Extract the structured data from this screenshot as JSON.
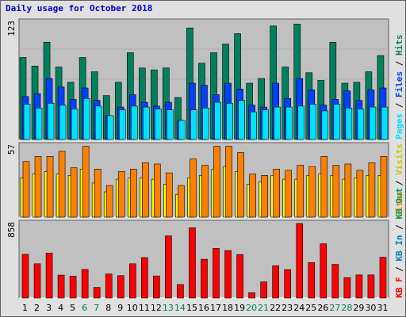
{
  "title": "Daily usage for October 2018",
  "colors": {
    "hits": "#00805c",
    "files": "#0040ff",
    "pages": "#00e0ff",
    "visits": "#ffff00",
    "sites": "#ff8000",
    "kb_f": "#ff0000",
    "kb_in": "#0080c0",
    "kb_out": "#00a050",
    "weekend_day": "#00805c",
    "weekday": "#000000"
  },
  "chart_data": [
    {
      "type": "bar",
      "panel": "hits-files-pages",
      "y_top_label": "123",
      "ylim": [
        0,
        123
      ],
      "right_labels": [
        {
          "text": "Pages",
          "color": "#00e0ff"
        },
        {
          "text": " / ",
          "color": "#000000"
        },
        {
          "text": "Files",
          "color": "#0040ff"
        },
        {
          "text": " / ",
          "color": "#000000"
        },
        {
          "text": "Hits",
          "color": "#00805c"
        }
      ],
      "categories": [
        "1",
        "2",
        "3",
        "4",
        "5",
        "6",
        "7",
        "8",
        "9",
        "10",
        "11",
        "12",
        "13",
        "14",
        "15",
        "16",
        "17",
        "18",
        "19",
        "20",
        "21",
        "22",
        "23",
        "24",
        "25",
        "26",
        "27",
        "28",
        "29",
        "30",
        "31"
      ],
      "series": [
        {
          "key": "hits",
          "values": [
            86,
            77,
            102,
            76,
            60,
            86,
            71,
            46,
            60,
            91,
            75,
            73,
            75,
            44,
            117,
            80,
            91,
            100,
            111,
            59,
            64,
            119,
            76,
            121,
            70,
            62,
            102,
            59,
            60,
            71,
            88
          ]
        },
        {
          "key": "files",
          "values": [
            45,
            48,
            64,
            55,
            42,
            54,
            41,
            25,
            34,
            47,
            39,
            35,
            39,
            20,
            59,
            57,
            47,
            59,
            53,
            36,
            34,
            59,
            43,
            64,
            52,
            36,
            42,
            51,
            41,
            52,
            54
          ]
        },
        {
          "key": "pages",
          "values": [
            37,
            33,
            38,
            36,
            32,
            43,
            35,
            25,
            31,
            35,
            34,
            32,
            31,
            20,
            31,
            33,
            39,
            38,
            41,
            29,
            31,
            34,
            34,
            35,
            37,
            30,
            37,
            33,
            32,
            34,
            34
          ]
        }
      ]
    },
    {
      "type": "bar",
      "panel": "visits-sites",
      "y_top_label": "57",
      "ylim": [
        0,
        57
      ],
      "right_labels": [
        {
          "text": "Sites",
          "color": "#ff8000"
        },
        {
          "text": " / ",
          "color": "#000000"
        },
        {
          "text": "Visits",
          "color": "#c8c800"
        }
      ],
      "categories": [
        "1",
        "2",
        "3",
        "4",
        "5",
        "6",
        "7",
        "8",
        "9",
        "10",
        "11",
        "12",
        "13",
        "14",
        "15",
        "16",
        "17",
        "18",
        "19",
        "20",
        "21",
        "22",
        "23",
        "24",
        "25",
        "26",
        "27",
        "28",
        "29",
        "30",
        "31"
      ],
      "series": [
        {
          "key": "visits",
          "values": [
            31,
            34,
            36,
            34,
            33,
            38,
            27,
            20,
            30,
            31,
            31,
            30,
            26,
            18,
            31,
            33,
            38,
            40,
            36,
            26,
            28,
            33,
            30,
            30,
            33,
            34,
            33,
            30,
            31,
            33,
            33
          ]
        },
        {
          "key": "sites",
          "values": [
            44,
            48,
            48,
            52,
            39,
            56,
            38,
            25,
            36,
            38,
            43,
            42,
            35,
            25,
            46,
            41,
            56,
            56,
            51,
            34,
            33,
            38,
            37,
            41,
            40,
            48,
            41,
            42,
            37,
            43,
            48
          ]
        }
      ]
    },
    {
      "type": "bar",
      "panel": "kbytes",
      "y_top_label": "858",
      "ylim": [
        0,
        858
      ],
      "right_labels": [
        {
          "text": "KB F",
          "color": "#ff0000"
        },
        {
          "text": " / ",
          "color": "#000000"
        },
        {
          "text": "KB In",
          "color": "#0080c0"
        },
        {
          "text": " / ",
          "color": "#000000"
        },
        {
          "text": "KB Out",
          "color": "#00a050"
        }
      ],
      "categories": [
        "1",
        "2",
        "3",
        "4",
        "5",
        "6",
        "7",
        "8",
        "9",
        "10",
        "11",
        "12",
        "13",
        "14",
        "15",
        "16",
        "17",
        "18",
        "19",
        "20",
        "21",
        "22",
        "23",
        "24",
        "25",
        "26",
        "27",
        "28",
        "29",
        "30",
        "31"
      ],
      "series": [
        {
          "key": "kb_f",
          "values": [
            503,
            394,
            517,
            264,
            251,
            329,
            122,
            276,
            258,
            394,
            465,
            254,
            715,
            155,
            809,
            446,
            571,
            546,
            500,
            60,
            185,
            371,
            326,
            858,
            408,
            624,
            387,
            233,
            266,
            266,
            469
          ]
        }
      ]
    }
  ],
  "x_axis": {
    "labels": [
      "1",
      "2",
      "3",
      "4",
      "5",
      "6",
      "7",
      "8",
      "9",
      "10",
      "11",
      "12",
      "13",
      "14",
      "15",
      "16",
      "17",
      "18",
      "19",
      "20",
      "21",
      "22",
      "23",
      "24",
      "25",
      "26",
      "27",
      "28",
      "29",
      "30",
      "31"
    ],
    "weekend": [
      6,
      7,
      13,
      14,
      20,
      21,
      27,
      28
    ]
  }
}
